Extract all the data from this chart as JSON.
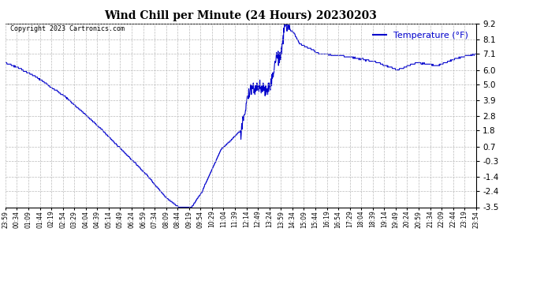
{
  "title": "Wind Chill per Minute (24 Hours) 20230203",
  "ylabel": "Temperature (°F)",
  "copyright": "Copyright 2023 Cartronics.com",
  "line_color": "#0000cc",
  "legend_color": "#0000cc",
  "background_color": "#ffffff",
  "grid_color": "#bbbbbb",
  "yticks": [
    9.2,
    8.1,
    7.1,
    6.0,
    5.0,
    3.9,
    2.8,
    1.8,
    0.7,
    -0.3,
    -1.4,
    -2.4,
    -3.5
  ],
  "ymin": -3.5,
  "ymax": 9.2,
  "x_labels": [
    "23:59",
    "00:34",
    "01:09",
    "01:44",
    "02:19",
    "02:54",
    "03:29",
    "04:04",
    "04:39",
    "05:14",
    "05:49",
    "06:24",
    "06:59",
    "07:34",
    "08:09",
    "08:44",
    "09:19",
    "09:54",
    "10:29",
    "11:04",
    "11:39",
    "12:14",
    "12:49",
    "13:24",
    "13:59",
    "14:34",
    "15:09",
    "15:44",
    "16:19",
    "16:54",
    "17:29",
    "18:04",
    "18:39",
    "19:14",
    "19:49",
    "20:24",
    "20:59",
    "21:34",
    "22:09",
    "22:44",
    "23:19",
    "23:54"
  ],
  "key_times": [
    0,
    35,
    95,
    180,
    275,
    355,
    430,
    490,
    530,
    570,
    600,
    630,
    660,
    720,
    750,
    810,
    830,
    845,
    855,
    870,
    885,
    900,
    930,
    960,
    1020,
    1080,
    1140,
    1200,
    1260,
    1320,
    1380,
    1440
  ],
  "key_vals": [
    6.5,
    6.2,
    5.5,
    4.2,
    2.3,
    0.5,
    -1.2,
    -2.8,
    -3.5,
    -3.5,
    -2.5,
    -1.0,
    0.5,
    1.8,
    4.7,
    4.8,
    7.0,
    7.1,
    9.2,
    8.8,
    8.5,
    7.8,
    7.5,
    7.1,
    7.0,
    6.8,
    6.5,
    6.0,
    6.5,
    6.3,
    6.8,
    7.1
  ]
}
